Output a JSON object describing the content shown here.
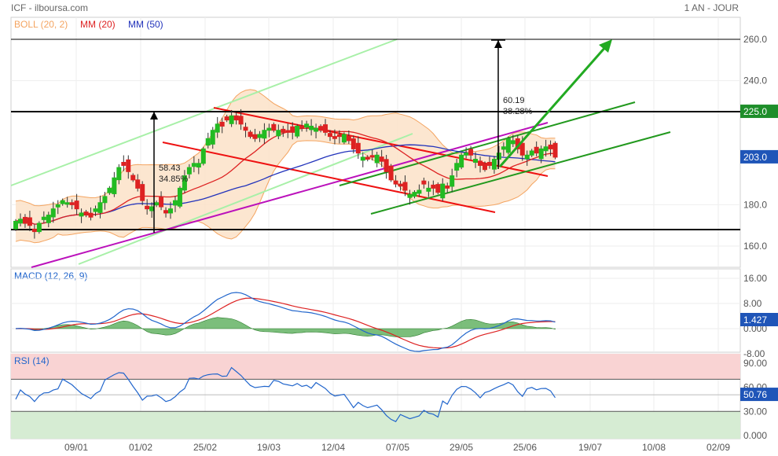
{
  "header": {
    "source": "ICF - ilboursa.com",
    "period": "1 AN - JOUR"
  },
  "legend": {
    "boll": "BOLL (20, 2)",
    "mm20": "MM (20)",
    "mm50": "MM (50)",
    "macd": "MACD (12, 26, 9)",
    "rsi": "RSI (14)"
  },
  "colors": {
    "bull": "#22bb22",
    "bear": "#dd2222",
    "mm20": "#dd2222",
    "mm50": "#2233bb",
    "boll_fill": "#fbe2c8",
    "boll_line": "#f4a460",
    "channel_light": "#a8f0a8",
    "channel_green": "#22991e",
    "channel_red": "#ee1111",
    "channel_magenta": "#bb11bb",
    "macd_line": "#2266cc",
    "signal_line": "#dd2222",
    "hist": "#4fa84f",
    "rsi_over": "#f9d3d3",
    "rsi_under": "#d6ecd3",
    "rsi_line": "#2266cc",
    "tag_price": "#1f55b8",
    "tag_resist": "#1e8e2a",
    "tag_macd": "#1f55b8",
    "tag_rsi": "#1f55b8"
  },
  "chart_data": [
    {
      "type": "candlestick",
      "title": "ICF",
      "x_ticks": [
        "09/01",
        "01/02",
        "25/02",
        "19/03",
        "12/04",
        "07/05",
        "29/05",
        "25/06",
        "19/07",
        "10/08",
        "02/09"
      ],
      "y_ticks": [
        "260.0",
        "240.0",
        "225.0",
        "203.0",
        "180.0",
        "160.0"
      ],
      "ylim": [
        150,
        268
      ],
      "levels": {
        "resistance_top": 260,
        "resistance": 225,
        "support": 168,
        "last": 203
      },
      "tags": {
        "resistance": "225.0",
        "last": "203.0"
      },
      "annotations": [
        {
          "label_1": "58.43",
          "label_2": "34.85%"
        },
        {
          "label_1": "60.19",
          "label_2": "38.28%"
        }
      ],
      "closes": [
        172,
        173,
        171,
        170,
        167,
        171,
        174,
        175,
        178,
        180,
        182,
        181,
        180,
        178,
        176,
        175,
        174,
        178,
        181,
        184,
        188,
        193,
        198,
        199,
        196,
        192,
        188,
        182,
        178,
        179,
        181,
        179,
        176,
        178,
        182,
        188,
        194,
        198,
        200,
        200,
        207,
        212,
        216,
        219,
        218,
        221,
        223,
        221,
        219,
        216,
        213,
        212,
        214,
        216,
        217,
        216,
        216,
        215,
        215,
        215,
        218,
        217,
        219,
        218,
        217,
        216,
        215,
        213,
        212,
        213,
        214,
        211,
        207,
        205,
        203,
        202,
        203,
        204,
        201,
        196,
        192,
        190,
        189,
        187,
        185,
        186,
        187,
        190,
        188,
        188,
        186,
        190,
        188,
        194,
        200,
        204,
        205,
        204,
        202,
        199,
        197,
        199,
        202,
        205,
        208,
        212,
        211,
        207,
        204,
        204,
        206,
        205,
        207,
        208,
        207,
        203
      ]
    },
    {
      "type": "line",
      "title": "MACD (12, 26, 9)",
      "y_ticks": [
        "16.00",
        "8.00",
        "0.000",
        "-8.00"
      ],
      "ylim": [
        -12,
        17
      ],
      "tag": "1.427"
    },
    {
      "type": "line",
      "title": "RSI (14)",
      "y_ticks": [
        "90.00",
        "60.00",
        "50.76",
        "30.00",
        "0.000"
      ],
      "ylim": [
        0,
        100
      ],
      "overbought": 70,
      "oversold": 30,
      "tag": "50.76"
    }
  ]
}
